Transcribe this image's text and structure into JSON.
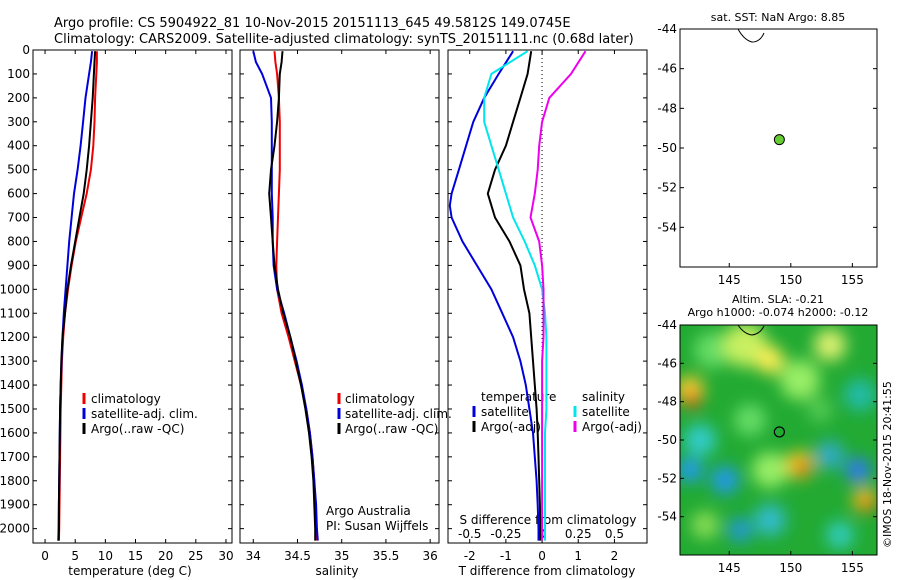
{
  "header": {
    "line1": "Argo profile: CS 5904922_81 10-Nov-2015 20151113_645 49.5812S 149.0745E",
    "line2": "Climatology: CARS2009. Satellite-adjusted climatology: synTS_20151111.nc (0.68d later)"
  },
  "colors": {
    "climatology": "#ee0000",
    "satellite": "#0000dd",
    "argo": "#000000",
    "salinity_sat": "#00e5ee",
    "salinity_argo": "#ee00ee",
    "float_marker": "#66cc33"
  },
  "chart_data": [
    {
      "type": "line",
      "title": "",
      "xlabel": "temperature (deg C)",
      "ylabel": "",
      "xlim": [
        -2,
        31
      ],
      "ylim": [
        2060,
        0
      ],
      "xticks": [
        0,
        5,
        10,
        15,
        20,
        25,
        30
      ],
      "yticks": [
        0,
        100,
        200,
        300,
        400,
        500,
        600,
        700,
        800,
        900,
        1000,
        1100,
        1200,
        1300,
        1400,
        1500,
        1600,
        1700,
        1800,
        1900,
        2000
      ],
      "legend": [
        "climatology",
        "satellite-adj. clim.",
        "Argo(..raw -QC)"
      ],
      "series": [
        {
          "name": "climatology",
          "color": "#ee0000",
          "depth": [
            5,
            50,
            100,
            200,
            300,
            400,
            500,
            600,
            700,
            800,
            900,
            1000,
            1100,
            1200,
            1300,
            1400,
            1500,
            1600,
            1700,
            1800,
            1900,
            2000,
            2050
          ],
          "values": [
            8.6,
            8.6,
            8.5,
            8.3,
            8.2,
            8.0,
            7.6,
            6.9,
            6.0,
            5.1,
            4.4,
            3.8,
            3.3,
            3.0,
            2.8,
            2.7,
            2.6,
            2.55,
            2.5,
            2.45,
            2.4,
            2.35,
            2.3
          ]
        },
        {
          "name": "satellite-adj. clim.",
          "color": "#0000dd",
          "depth": [
            5,
            50,
            100,
            200,
            300,
            400,
            500,
            600,
            700,
            800,
            900,
            1000,
            1100,
            1200,
            1300,
            1400,
            1500,
            1600,
            1700,
            1800,
            1900,
            2000,
            2050
          ],
          "values": [
            7.8,
            7.6,
            7.3,
            6.7,
            6.3,
            5.9,
            5.4,
            4.8,
            4.4,
            4.0,
            3.7,
            3.4,
            3.1,
            2.9,
            2.75,
            2.6,
            2.5,
            2.45,
            2.4,
            2.35,
            2.3,
            2.25,
            2.2
          ]
        },
        {
          "name": "Argo(..raw -QC)",
          "color": "#000000",
          "depth": [
            5,
            50,
            100,
            200,
            300,
            400,
            500,
            600,
            700,
            800,
            900,
            1000,
            1100,
            1200,
            1300,
            1400,
            1500,
            1600,
            1700,
            1800,
            1900,
            2000,
            2050
          ],
          "values": [
            8.3,
            8.2,
            8.1,
            7.9,
            7.6,
            7.3,
            6.9,
            6.4,
            5.7,
            5.0,
            4.3,
            3.7,
            3.3,
            2.9,
            2.7,
            2.6,
            2.5,
            2.45,
            2.4,
            2.35,
            2.3,
            2.3,
            2.25
          ]
        }
      ]
    },
    {
      "type": "line",
      "title": "",
      "xlabel": "salinity",
      "ylabel": "",
      "xlim": [
        33.85,
        36.1
      ],
      "ylim": [
        2060,
        0
      ],
      "xticks": [
        34,
        34.5,
        35,
        35.5,
        36
      ],
      "legend": [
        "climatology",
        "satellite-adj. clim.",
        "Argo(..raw -QC)"
      ],
      "annotation": [
        "Argo Australia",
        "PI: Susan Wijffels"
      ],
      "series": [
        {
          "name": "climatology",
          "color": "#ee0000",
          "depth": [
            5,
            50,
            100,
            200,
            300,
            400,
            500,
            600,
            700,
            800,
            900,
            1000,
            1100,
            1200,
            1300,
            1400,
            1500,
            1600,
            1700,
            1800,
            1900,
            2000,
            2050
          ],
          "values": [
            34.24,
            34.25,
            34.27,
            34.29,
            34.3,
            34.3,
            34.3,
            34.29,
            34.28,
            34.27,
            34.26,
            34.27,
            34.32,
            34.4,
            34.47,
            34.54,
            34.6,
            34.64,
            34.67,
            34.69,
            34.7,
            34.71,
            34.72
          ]
        },
        {
          "name": "satellite-adj. clim.",
          "color": "#0000dd",
          "depth": [
            5,
            50,
            100,
            200,
            300,
            400,
            500,
            600,
            700,
            800,
            900,
            1000,
            1100,
            1200,
            1300,
            1400,
            1500,
            1600,
            1700,
            1800,
            1900,
            2000,
            2050
          ],
          "values": [
            34.0,
            34.03,
            34.1,
            34.2,
            34.21,
            34.21,
            34.21,
            34.21,
            34.22,
            34.22,
            34.23,
            34.27,
            34.35,
            34.42,
            34.49,
            34.55,
            34.6,
            34.64,
            34.67,
            34.69,
            34.71,
            34.72,
            34.73
          ]
        },
        {
          "name": "Argo(..raw -QC)",
          "color": "#000000",
          "depth": [
            5,
            50,
            100,
            200,
            300,
            400,
            500,
            600,
            700,
            800,
            900,
            1000,
            1100,
            1200,
            1300,
            1400,
            1500,
            1600,
            1700,
            1800,
            1900,
            2000,
            2050
          ],
          "values": [
            34.33,
            34.32,
            34.3,
            34.29,
            34.27,
            34.24,
            34.2,
            34.18,
            34.2,
            34.22,
            34.24,
            34.28,
            34.34,
            34.42,
            34.48,
            34.54,
            34.59,
            34.63,
            34.66,
            34.68,
            34.69,
            34.7,
            34.7
          ]
        }
      ]
    },
    {
      "type": "line",
      "title": "",
      "xlabel": "T difference from climatology",
      "xlabel_top": "S difference from climatology",
      "ylabel": "",
      "xlim": [
        -2.6,
        2.9
      ],
      "ylim": [
        2060,
        0
      ],
      "xticks": [
        -2,
        -1,
        0,
        1,
        2
      ],
      "xticks_salinity": [
        "-0.5",
        "-0.25",
        "0",
        "0.25",
        "0.5"
      ],
      "legend_temperature": {
        "heading": "temperature",
        "entries": [
          "satellite",
          "Argo(-adj)"
        ]
      },
      "legend_salinity": {
        "heading": "salinity",
        "entries": [
          "satellite",
          "Argo(-adj)"
        ]
      },
      "series": [
        {
          "name": "satellite",
          "color": "#0000dd",
          "depth": [
            5,
            100,
            200,
            300,
            400,
            500,
            600,
            650,
            700,
            800,
            900,
            1000,
            1100,
            1200,
            1300,
            1400,
            1500,
            1600,
            1700,
            1800,
            1900,
            2000,
            2050
          ],
          "values": [
            -0.8,
            -1.2,
            -1.6,
            -1.9,
            -2.1,
            -2.3,
            -2.5,
            -2.55,
            -2.5,
            -2.2,
            -1.8,
            -1.4,
            -1.1,
            -0.8,
            -0.6,
            -0.45,
            -0.35,
            -0.25,
            -0.2,
            -0.15,
            -0.12,
            -0.1,
            -0.1
          ]
        },
        {
          "name": "Argo(-adj)",
          "color": "#000000",
          "depth": [
            5,
            100,
            200,
            300,
            400,
            500,
            600,
            700,
            800,
            900,
            1000,
            1100,
            1200,
            1300,
            1400,
            1500,
            1600,
            1700,
            1800,
            1900,
            2000,
            2050
          ],
          "values": [
            -0.3,
            -0.4,
            -0.6,
            -0.8,
            -1.0,
            -1.3,
            -1.5,
            -1.3,
            -0.9,
            -0.6,
            -0.5,
            -0.35,
            -0.3,
            -0.25,
            -0.2,
            -0.15,
            -0.12,
            -0.1,
            -0.08,
            -0.06,
            -0.05,
            -0.05
          ]
        },
        {
          "name": "salinity satellite",
          "color": "#00e5ee",
          "depth": [
            5,
            100,
            200,
            300,
            400,
            500,
            600,
            700,
            800,
            900,
            1000,
            1100,
            1200,
            1300,
            1400,
            1500,
            1600,
            1700,
            1800,
            1900,
            2000,
            2050
          ],
          "values": [
            -0.1,
            -0.35,
            -0.4,
            -0.4,
            -0.35,
            -0.3,
            -0.25,
            -0.2,
            -0.12,
            -0.05,
            0.0,
            0.02,
            0.03,
            0.03,
            0.03,
            0.03,
            0.02,
            0.02,
            0.02,
            0.02,
            0.02,
            0.02
          ]
        },
        {
          "name": "salinity Argo(-adj)",
          "color": "#ee00ee",
          "depth": [
            5,
            100,
            200,
            300,
            400,
            500,
            600,
            700,
            800,
            900,
            1000,
            1100,
            1200,
            1300,
            1400,
            1500,
            1600,
            1700,
            1800,
            1900,
            2000,
            2050
          ],
          "values": [
            0.3,
            0.2,
            0.05,
            0.0,
            -0.02,
            -0.03,
            -0.05,
            -0.08,
            -0.02,
            0.0,
            0.01,
            0.01,
            0.01,
            0.0,
            0.0,
            0.0,
            0.0,
            0.0,
            0.0,
            0.0,
            0.0,
            0.0
          ]
        }
      ]
    },
    {
      "type": "scatter",
      "title": "sat. SST: NaN Argo: 8.85",
      "xlim": [
        141,
        157
      ],
      "ylim": [
        -56,
        -44
      ],
      "xticks": [
        145,
        150,
        155
      ],
      "yticks": [
        -44,
        -46,
        -48,
        -50,
        -52,
        -54
      ],
      "points": [
        {
          "x": 149.07,
          "y": -49.58
        }
      ]
    },
    {
      "type": "heatmap",
      "title_line1": "Altim. SLA: -0.21",
      "title_line2": "Argo h1000: -0.074 h2000: -0.12",
      "xlim": [
        141,
        157
      ],
      "ylim": [
        -56,
        -44
      ],
      "xticks": [
        145,
        150,
        155
      ],
      "yticks": [
        -44,
        -46,
        -48,
        -50,
        -52,
        -54
      ],
      "points": [
        {
          "x": 149.07,
          "y": -49.58
        }
      ],
      "credit": "©IMOS 18-Nov-2015 20:41:55"
    }
  ]
}
